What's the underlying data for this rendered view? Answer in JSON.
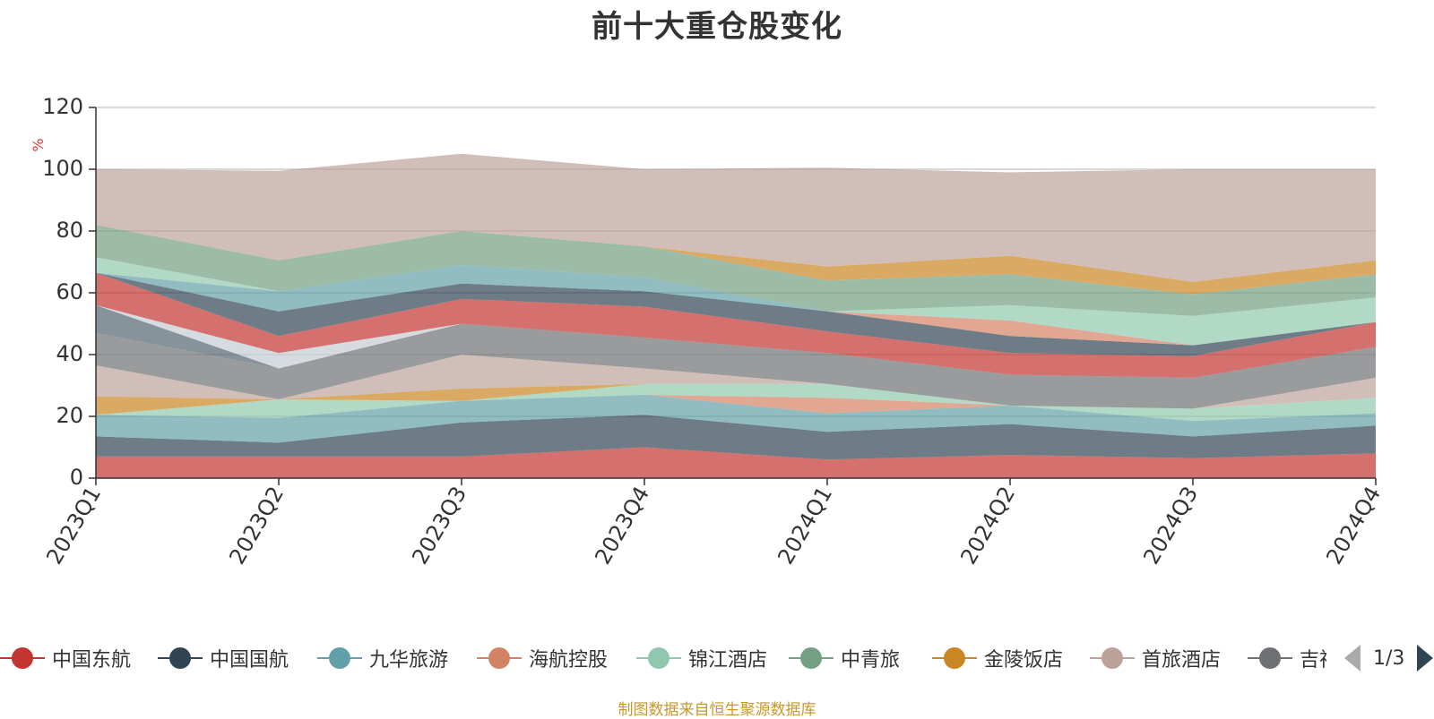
{
  "title": "前十大重仓股变化",
  "source_note": "制图数据来自恒生聚源数据库",
  "pager": {
    "text": "1/3"
  },
  "colors": {
    "axis": "#333333",
    "grid": "#cccccc",
    "title": "#333333",
    "source": "#c9972b",
    "unit": "#e53935"
  },
  "chart_data": {
    "type": "area",
    "stacked": true,
    "yunit": "%",
    "ylim": [
      0,
      120
    ],
    "yticks": [
      0,
      20,
      40,
      60,
      80,
      100,
      120
    ],
    "grid": true,
    "legend_position": "bottom",
    "categories": [
      "2023Q1",
      "2023Q2",
      "2023Q3",
      "2023Q4",
      "2024Q1",
      "2024Q2",
      "2024Q3",
      "2024Q4"
    ],
    "series": [
      {
        "name": "中国东航",
        "color": "#c23531",
        "values": [
          7,
          7,
          7,
          10,
          6,
          7.5,
          6.5,
          8
        ]
      },
      {
        "name": "中国国航",
        "color": "#2f4554",
        "values": [
          6.5,
          4.5,
          11,
          10.5,
          9,
          10,
          7,
          9
        ]
      },
      {
        "name": "九华旅游",
        "color": "#61a0a8",
        "values": [
          7,
          8,
          7,
          6.5,
          6,
          6,
          5,
          4
        ]
      },
      {
        "name": "海航控股",
        "color": "#d48265",
        "values": [
          0,
          0,
          0,
          0,
          5,
          0,
          0,
          0
        ]
      },
      {
        "name": "锦江酒店",
        "color": "#91c7ae",
        "values": [
          0,
          6,
          0,
          3.5,
          4.5,
          0,
          4,
          5
        ]
      },
      {
        "name": "中青旅",
        "color": "#749f83",
        "values": [
          0,
          0,
          0,
          0,
          0,
          0,
          0,
          0
        ]
      },
      {
        "name": "金陵饭店",
        "color": "#ca8622",
        "values": [
          6,
          0,
          4,
          0,
          0,
          0,
          0,
          0
        ]
      },
      {
        "name": "首旅酒店",
        "color": "#bda29a",
        "values": [
          10,
          0,
          11,
          5,
          0,
          0,
          0,
          6.5
        ]
      },
      {
        "name": "吉祥航空",
        "color": "#6e7074",
        "values": [
          10.5,
          10,
          10,
          10,
          10,
          10,
          10,
          10
        ]
      },
      {
        "name": "",
        "color": "#546570",
        "values": [
          9,
          0,
          0,
          0,
          0,
          0,
          0,
          0
        ]
      },
      {
        "name": "",
        "color": "#c4ccd3",
        "values": [
          0,
          5,
          0,
          0,
          0,
          0,
          0,
          0
        ]
      },
      {
        "name": "",
        "color": "#c23531",
        "values": [
          10.5,
          5.5,
          8,
          10,
          7,
          7,
          7,
          8
        ]
      },
      {
        "name": "",
        "color": "#2f4554",
        "values": [
          0,
          8,
          5,
          5,
          6.5,
          5.5,
          3.5,
          0
        ]
      },
      {
        "name": "",
        "color": "#61a0a8",
        "values": [
          0,
          6.5,
          6,
          4.5,
          0,
          0,
          0,
          0
        ]
      },
      {
        "name": "",
        "color": "#d48265",
        "values": [
          0,
          0,
          0,
          0,
          0,
          5,
          0,
          0
        ]
      },
      {
        "name": "",
        "color": "#91c7ae",
        "values": [
          5,
          0,
          0,
          0,
          0,
          5,
          9.5,
          8
        ]
      },
      {
        "name": "",
        "color": "#749f83",
        "values": [
          10.5,
          10,
          11,
          10,
          10,
          10,
          7,
          7.5
        ]
      },
      {
        "name": "",
        "color": "#ca8622",
        "values": [
          0,
          0,
          0,
          0,
          4.5,
          6,
          4,
          4.5
        ]
      },
      {
        "name": "",
        "color": "#bda29a",
        "values": [
          18,
          29,
          25,
          25,
          32,
          27,
          36.5,
          29.5
        ]
      }
    ],
    "legend": [
      {
        "name": "中国东航",
        "color": "#c23531"
      },
      {
        "name": "中国国航",
        "color": "#2f4554"
      },
      {
        "name": "九华旅游",
        "color": "#61a0a8"
      },
      {
        "name": "海航控股",
        "color": "#d48265"
      },
      {
        "name": "锦江酒店",
        "color": "#91c7ae"
      },
      {
        "name": "中青旅",
        "color": "#749f83"
      },
      {
        "name": "金陵饭店",
        "color": "#ca8622"
      },
      {
        "name": "首旅酒店",
        "color": "#bda29a"
      },
      {
        "name": "吉祥航空",
        "color": "#6e7074"
      }
    ]
  }
}
